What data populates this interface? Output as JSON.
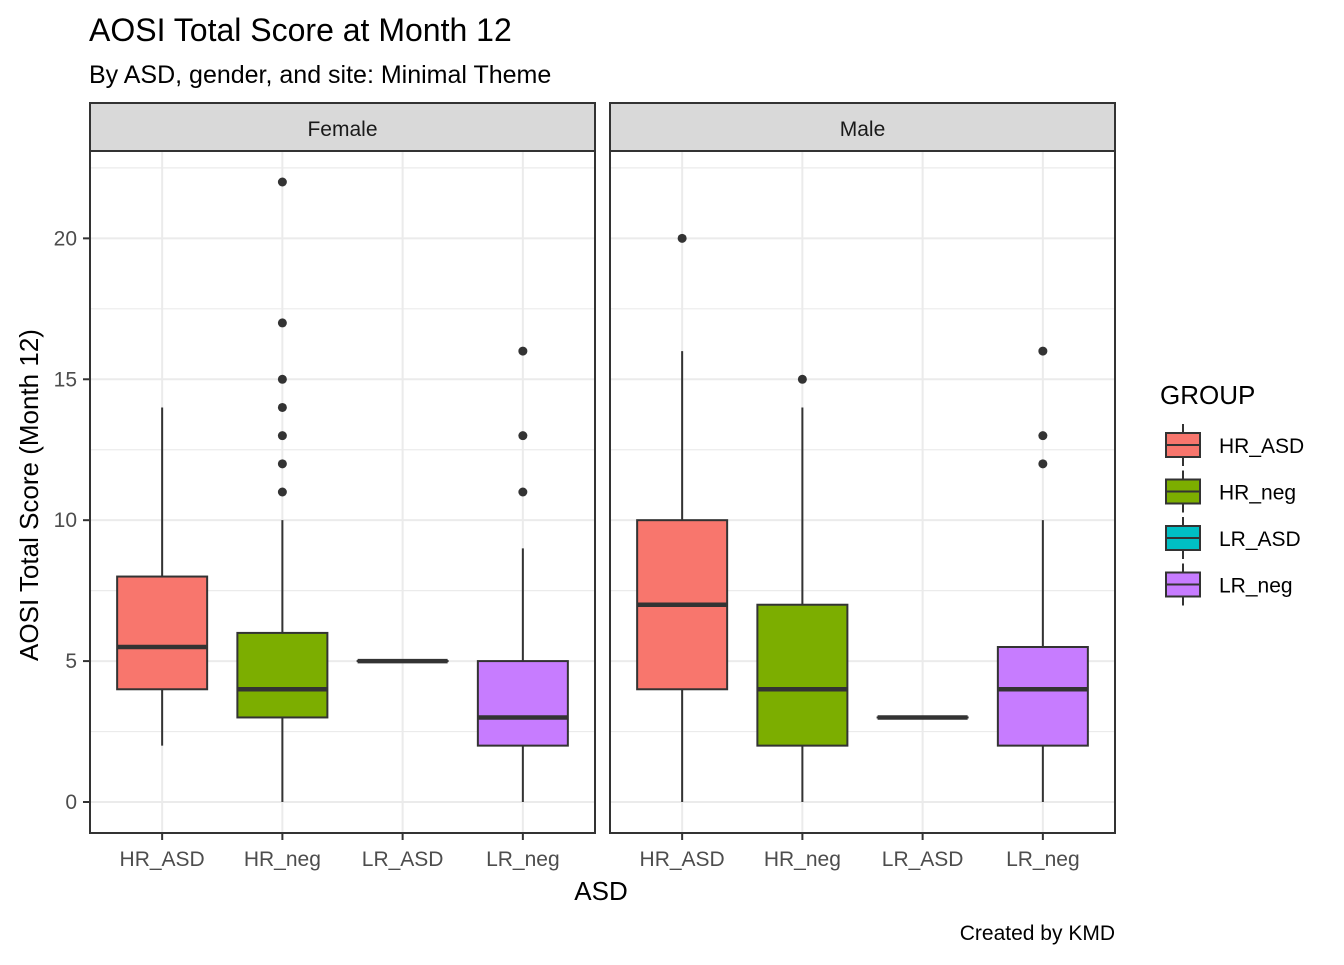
{
  "chart_data": {
    "type": "boxplot",
    "title": "AOSI Total Score at Month 12",
    "subtitle": "By ASD, gender, and site: Minimal Theme",
    "caption": "Created by KMD",
    "xlabel": "ASD",
    "ylabel": "AOSI Total Score (Month 12)",
    "ylim": [
      -1.1,
      23.1
    ],
    "y_ticks": [
      0,
      5,
      10,
      15,
      20
    ],
    "y_tick_labels": [
      "0",
      "5",
      "10",
      "15",
      "20"
    ],
    "categories": [
      "HR_ASD",
      "HR_neg",
      "LR_ASD",
      "LR_neg"
    ],
    "legend": {
      "title": "GROUP",
      "position": "right",
      "entries": [
        {
          "label": "HR_ASD",
          "color": "#F8766D"
        },
        {
          "label": "HR_neg",
          "color": "#7CAE00"
        },
        {
          "label": "LR_ASD",
          "color": "#00BFC4"
        },
        {
          "label": "LR_neg",
          "color": "#C77CFF"
        }
      ]
    },
    "facets": [
      {
        "label": "Female",
        "boxes": [
          {
            "category": "HR_ASD",
            "min": 2,
            "q1": 4,
            "median": 5.5,
            "q3": 8,
            "max": 14,
            "outliers": []
          },
          {
            "category": "HR_neg",
            "min": 0,
            "q1": 3,
            "median": 4,
            "q3": 6,
            "max": 10,
            "outliers": [
              11,
              12,
              13,
              14,
              15,
              17,
              22
            ]
          },
          {
            "category": "LR_ASD",
            "min": 5,
            "q1": 5,
            "median": 5,
            "q3": 5,
            "max": 5,
            "outliers": []
          },
          {
            "category": "LR_neg",
            "min": 0,
            "q1": 2,
            "median": 3,
            "q3": 5,
            "max": 9,
            "outliers": [
              11,
              13,
              16
            ]
          }
        ]
      },
      {
        "label": "Male",
        "boxes": [
          {
            "category": "HR_ASD",
            "min": 0,
            "q1": 4,
            "median": 7,
            "q3": 10,
            "max": 16,
            "outliers": [
              20
            ]
          },
          {
            "category": "HR_neg",
            "min": 0,
            "q1": 2,
            "median": 4,
            "q3": 7,
            "max": 14,
            "outliers": [
              15
            ]
          },
          {
            "category": "LR_ASD",
            "min": 3,
            "q1": 3,
            "median": 3,
            "q3": 3,
            "max": 3,
            "outliers": []
          },
          {
            "category": "LR_neg",
            "min": 0,
            "q1": 2,
            "median": 4,
            "q3": 5.5,
            "max": 10,
            "outliers": [
              12,
              13,
              16
            ]
          }
        ]
      }
    ],
    "colors": {
      "HR_ASD": "#F8766D",
      "HR_neg": "#7CAE00",
      "LR_ASD": "#00BFC4",
      "LR_neg": "#C77CFF",
      "strip_fill": "#D9D9D9",
      "grid": "#EBEBEB",
      "panel_border": "#333333",
      "median_line": "#333333"
    },
    "grid": true
  }
}
